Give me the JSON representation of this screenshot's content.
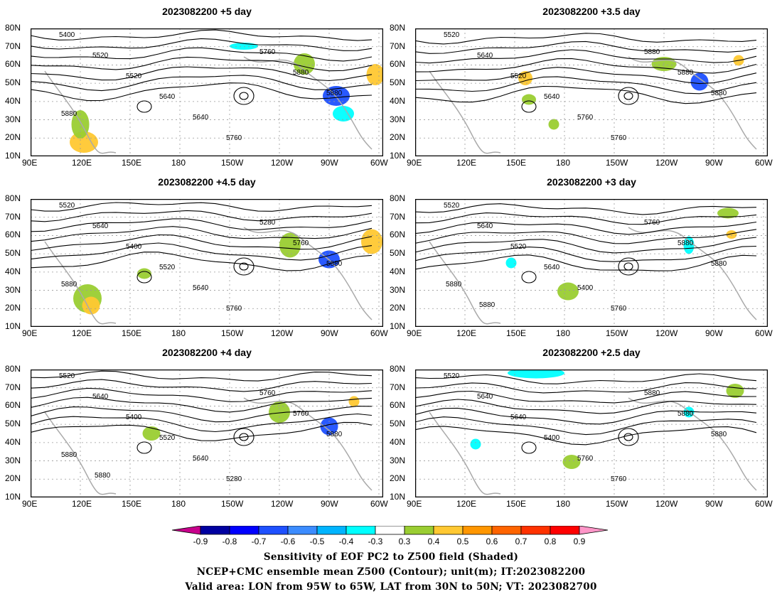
{
  "panels": [
    {
      "title": "2023082200  +5  day",
      "contour_labels": [
        "5400",
        "5520",
        "5520",
        "5640",
        "5640",
        "5760",
        "5760",
        "5880",
        "5880",
        "5880"
      ]
    },
    {
      "title": "2023082200  +3.5  day",
      "contour_labels": [
        "5520",
        "5640",
        "5520",
        "5640",
        "5760",
        "5760",
        "5880",
        "5880",
        "5880"
      ]
    },
    {
      "title": "2023082200  +4.5  day",
      "contour_labels": [
        "5520",
        "5640",
        "5400",
        "5520",
        "5640",
        "5760",
        "5280",
        "5760",
        "5880",
        "5880"
      ]
    },
    {
      "title": "2023082200  +3  day",
      "contour_labels": [
        "5520",
        "5640",
        "5520",
        "5640",
        "5400",
        "5760",
        "5760",
        "5880",
        "5880",
        "5880",
        "5880"
      ]
    },
    {
      "title": "2023082200  +4  day",
      "contour_labels": [
        "5520",
        "5640",
        "5400",
        "5520",
        "5640",
        "5280",
        "5760",
        "5760",
        "5880",
        "5880",
        "5880"
      ]
    },
    {
      "title": "2023082200  +2.5  day",
      "contour_labels": [
        "5520",
        "5640",
        "5640",
        "5400",
        "5760",
        "5760",
        "5880",
        "5880",
        "5880"
      ]
    }
  ],
  "lat_labels": [
    "80N",
    "70N",
    "60N",
    "50N",
    "40N",
    "30N",
    "20N",
    "10N"
  ],
  "lon_labels": [
    "90E",
    "120E",
    "150E",
    "180",
    "150W",
    "120W",
    "90W",
    "60W"
  ],
  "colorbar": {
    "ticks": [
      "-0.9",
      "-0.8",
      "-0.7",
      "-0.6",
      "-0.5",
      "-0.4",
      "-0.3",
      "0.3",
      "0.4",
      "0.5",
      "0.6",
      "0.7",
      "0.8",
      "0.9"
    ],
    "colors": [
      "#0000a0",
      "#0000ff",
      "#1e50ff",
      "#3c8cff",
      "#00b4ff",
      "#00ffff",
      "#ffffff",
      "#9acd32",
      "#ffc832",
      "#ff9600",
      "#ff6400",
      "#ff3200",
      "#ff0000"
    ],
    "low_arrow": "#c8008c",
    "high_arrow": "#ff96c8"
  },
  "caption": {
    "line1": "Sensitivity of EOF PC2 to Z500 field (Shaded)",
    "line2": "NCEP+CMC ensemble mean Z500 (Contour); unit(m); IT:2023082200",
    "line3": "Valid area: LON from 95W to 65W, LAT from 30N to 50N; VT: 2023082700"
  }
}
